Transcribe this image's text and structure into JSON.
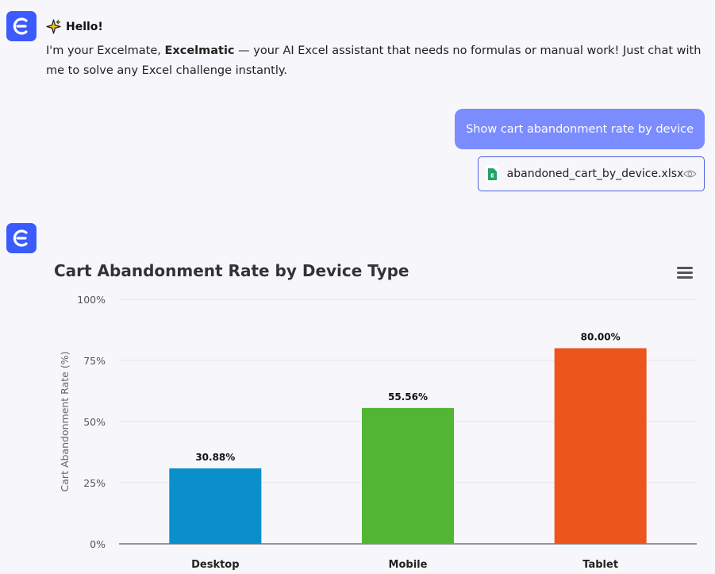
{
  "assistant": {
    "greeting_title": "Hello!",
    "greeting_pre": "I'm your Excelmate, ",
    "greeting_brand": "Excelmatic",
    "greeting_post": " — your AI Excel assistant that needs no formulas or manual work! Just chat with me to solve any Excel challenge instantly."
  },
  "user": {
    "message": "Show cart abandonment rate by device",
    "attachment": "abandoned_cart_by_device.xlsx"
  },
  "chart_data": {
    "type": "bar",
    "title": "Cart Abandonment Rate by Device Type",
    "ylabel": "Cart Abandonment Rate (%)",
    "xlabel": "",
    "categories": [
      "Desktop",
      "Mobile",
      "Tablet"
    ],
    "values": [
      30.88,
      55.56,
      80.0
    ],
    "data_labels": [
      "30.88%",
      "55.56%",
      "80.00%"
    ],
    "colors": [
      "#0a8fcc",
      "#52b534",
      "#ec551c"
    ],
    "ylim": [
      0,
      100
    ],
    "yticks": [
      "0%",
      "25%",
      "50%",
      "75%",
      "100%"
    ],
    "grid": true,
    "legend": "none"
  },
  "colors": {
    "brand": "#3b5bfd",
    "user_bubble": "#7b8cff"
  }
}
